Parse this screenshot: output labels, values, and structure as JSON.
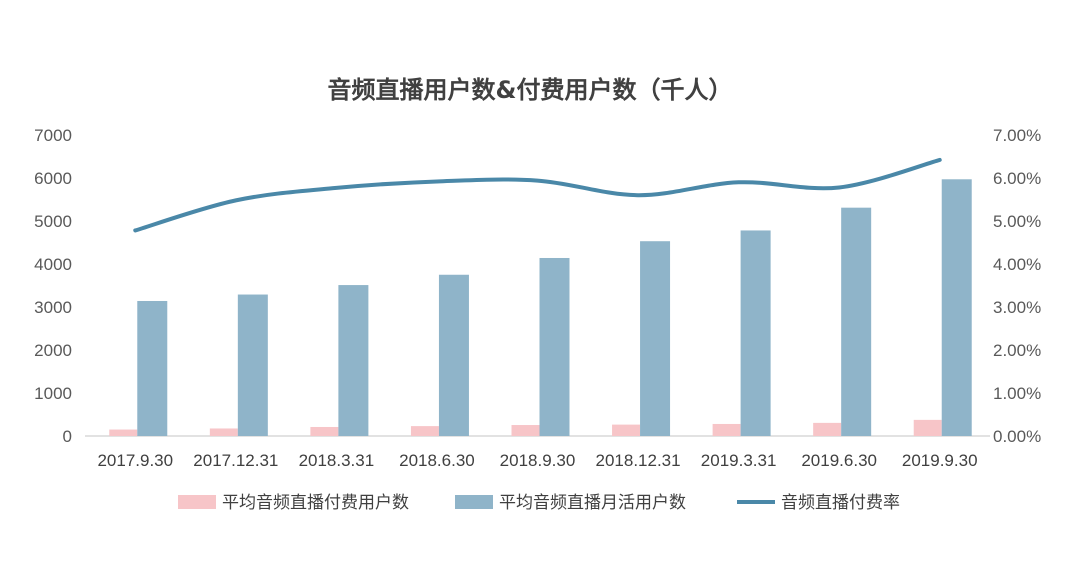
{
  "chart_data": {
    "type": "bar",
    "title": "音频直播用户数&付费用户数（千人）",
    "categories": [
      "2017.9.30",
      "2017.12.31",
      "2018.3.31",
      "2018.6.30",
      "2018.9.30",
      "2018.12.31",
      "2019.3.31",
      "2019.6.30",
      "2019.9.30"
    ],
    "series": [
      {
        "name": "平均音频直播付费用户数",
        "kind": "bar",
        "axis": "left",
        "color": "#f7c5c8",
        "values": [
          150,
          175,
          210,
          230,
          255,
          265,
          280,
          305,
          375
        ]
      },
      {
        "name": "平均音频直播月活用户数",
        "kind": "bar",
        "axis": "left",
        "color": "#8fb4c9",
        "values": [
          3140,
          3290,
          3510,
          3750,
          4140,
          4530,
          4780,
          5310,
          5970
        ]
      },
      {
        "name": "音频直播付费率",
        "kind": "line",
        "axis": "right",
        "color": "#4a88a8",
        "values": [
          4.78,
          5.48,
          5.77,
          5.92,
          5.94,
          5.6,
          5.9,
          5.78,
          6.42
        ]
      }
    ],
    "ylim": [
      0,
      7000
    ],
    "yticks": [
      "0",
      "1000",
      "2000",
      "3000",
      "4000",
      "5000",
      "6000",
      "7000"
    ],
    "ylim_right": [
      0,
      7
    ],
    "yticks_right": [
      "0.00%",
      "1.00%",
      "2.00%",
      "3.00%",
      "4.00%",
      "5.00%",
      "6.00%",
      "7.00%"
    ],
    "grid": false,
    "legend_position": "bottom"
  }
}
